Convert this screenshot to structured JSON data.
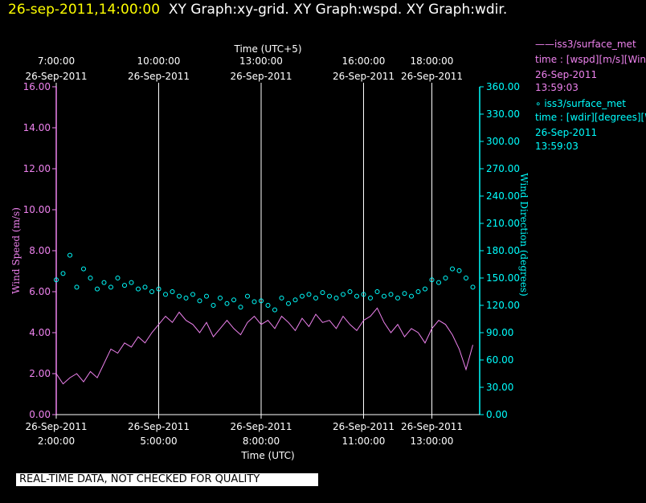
{
  "header": {
    "timestamp": "26-sep-2011,14:00:00",
    "title": "XY Graph:xy-grid.  XY Graph:wspd.  XY Graph:wdir."
  },
  "legend": {
    "wspd": {
      "line1": "——iss3/surface_met",
      "line2": "time : [wspd][m/s][Wind",
      "line3": "26-Sep-2011",
      "line4": "13:59:03",
      "color": "#ee82ee"
    },
    "wdir": {
      "line1": "∘ iss3/surface_met",
      "line2": "time : [wdir][degrees][W",
      "line3": "26-Sep-2011",
      "line4": "13:59:03",
      "color": "#00ffff"
    }
  },
  "disclaimer": "REAL-TIME DATA, NOT CHECKED FOR QUALITY",
  "chart_data": {
    "type": "line",
    "x_label_bottom": "Time (UTC)",
    "x_label_top": "Time (UTC+5)",
    "y_label_left": "Wind Speed (m/s)",
    "y_label_right": "Wind Direction (degrees)",
    "ylim_left": [
      0,
      16
    ],
    "ylim_right": [
      0,
      360
    ],
    "xlim_hours_utc": [
      2.0,
      14.4
    ],
    "grid": "vertical",
    "colors": {
      "wspd": "#ee82ee",
      "wdir": "#00ffff",
      "axis_left": "#ee82ee",
      "axis_right": "#00ffff",
      "grid": "#ffffff"
    },
    "y_ticks_left": [
      "0.00",
      "2.00",
      "4.00",
      "6.00",
      "8.00",
      "10.00",
      "12.00",
      "14.00",
      "16.00"
    ],
    "y_ticks_right": [
      "0.00",
      "30.00",
      "60.00",
      "90.00",
      "120.00",
      "150.00",
      "180.00",
      "210.00",
      "240.00",
      "270.00",
      "300.00",
      "330.00",
      "360.00"
    ],
    "x_ticks_bottom": [
      {
        "hour": 2,
        "date": "26-Sep-2011",
        "time": "2:00:00"
      },
      {
        "hour": 5,
        "date": "26-Sep-2011",
        "time": "5:00:00"
      },
      {
        "hour": 8,
        "date": "26-Sep-2011",
        "time": "8:00:00"
      },
      {
        "hour": 11,
        "date": "26-Sep-2011",
        "time": "11:00:00"
      },
      {
        "hour": 13,
        "date": "26-Sep-2011",
        "time": "13:00:00"
      }
    ],
    "x_ticks_top": [
      {
        "hour": 2,
        "time": "7:00:00",
        "date": "26-Sep-2011"
      },
      {
        "hour": 5,
        "time": "10:00:00",
        "date": "26-Sep-2011"
      },
      {
        "hour": 8,
        "time": "13:00:00",
        "date": "26-Sep-2011"
      },
      {
        "hour": 11,
        "time": "16:00:00",
        "date": "26-Sep-2011"
      },
      {
        "hour": 13,
        "time": "18:00:00",
        "date": "26-Sep-2011"
      }
    ],
    "series": [
      {
        "name": "iss3/surface_met wspd",
        "style": "line",
        "x": [
          2.0,
          2.2,
          2.4,
          2.6,
          2.8,
          3.0,
          3.2,
          3.4,
          3.6,
          3.8,
          4.0,
          4.2,
          4.4,
          4.6,
          4.8,
          5.0,
          5.2,
          5.4,
          5.6,
          5.8,
          6.0,
          6.2,
          6.4,
          6.6,
          6.8,
          7.0,
          7.2,
          7.4,
          7.6,
          7.8,
          8.0,
          8.2,
          8.4,
          8.6,
          8.8,
          9.0,
          9.2,
          9.4,
          9.6,
          9.8,
          10.0,
          10.2,
          10.4,
          10.6,
          10.8,
          11.0,
          11.2,
          11.4,
          11.6,
          11.8,
          12.0,
          12.2,
          12.4,
          12.6,
          12.8,
          13.0,
          13.2,
          13.4,
          13.6,
          13.8,
          14.0,
          14.2
        ],
        "values": [
          2.0,
          1.5,
          1.8,
          2.0,
          1.6,
          2.1,
          1.8,
          2.5,
          3.2,
          3.0,
          3.5,
          3.3,
          3.8,
          3.5,
          4.0,
          4.4,
          4.8,
          4.5,
          5.0,
          4.6,
          4.4,
          4.0,
          4.5,
          3.8,
          4.2,
          4.6,
          4.2,
          3.9,
          4.5,
          4.8,
          4.4,
          4.6,
          4.2,
          4.8,
          4.5,
          4.1,
          4.7,
          4.3,
          4.9,
          4.5,
          4.6,
          4.2,
          4.8,
          4.4,
          4.1,
          4.6,
          4.8,
          5.2,
          4.5,
          4.0,
          4.4,
          3.8,
          4.2,
          4.0,
          3.5,
          4.2,
          4.6,
          4.4,
          3.9,
          3.2,
          2.2,
          3.4
        ]
      },
      {
        "name": "iss3/surface_met wdir",
        "style": "scatter",
        "x": [
          2.0,
          2.2,
          2.4,
          2.6,
          2.8,
          3.0,
          3.2,
          3.4,
          3.6,
          3.8,
          4.0,
          4.2,
          4.4,
          4.6,
          4.8,
          5.0,
          5.2,
          5.4,
          5.6,
          5.8,
          6.0,
          6.2,
          6.4,
          6.6,
          6.8,
          7.0,
          7.2,
          7.4,
          7.6,
          7.8,
          8.0,
          8.2,
          8.4,
          8.6,
          8.8,
          9.0,
          9.2,
          9.4,
          9.6,
          9.8,
          10.0,
          10.2,
          10.4,
          10.6,
          10.8,
          11.0,
          11.2,
          11.4,
          11.6,
          11.8,
          12.0,
          12.2,
          12.4,
          12.6,
          12.8,
          13.0,
          13.2,
          13.4,
          13.6,
          13.8,
          14.0,
          14.2
        ],
        "values": [
          148,
          155,
          175,
          140,
          160,
          150,
          138,
          145,
          140,
          150,
          142,
          145,
          138,
          140,
          135,
          138,
          132,
          135,
          130,
          128,
          132,
          125,
          130,
          120,
          128,
          122,
          126,
          118,
          130,
          124,
          125,
          120,
          115,
          128,
          122,
          126,
          130,
          132,
          128,
          134,
          130,
          128,
          132,
          135,
          130,
          132,
          128,
          135,
          130,
          132,
          128,
          133,
          130,
          135,
          138,
          148,
          145,
          150,
          160,
          158,
          150,
          140
        ]
      }
    ]
  }
}
